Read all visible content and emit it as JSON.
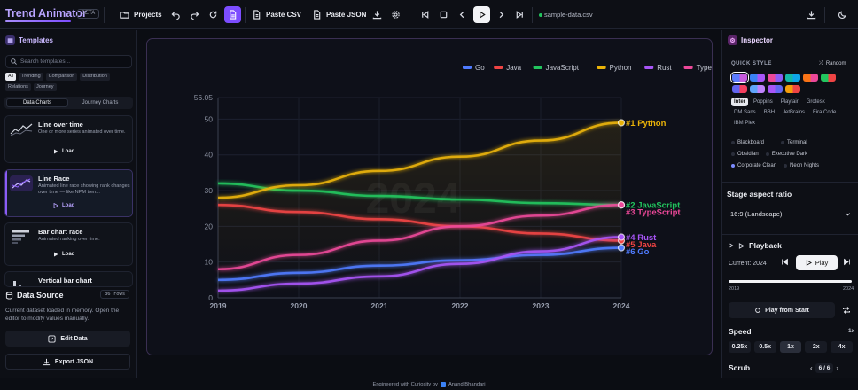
{
  "app": {
    "title": "Trend Animator",
    "badge": "BETA"
  },
  "toolbar": {
    "projects_label": "Projects",
    "paste_csv_label": "Paste CSV",
    "paste_json_label": "Paste JSON",
    "file_name": "sample-data.csv"
  },
  "templates": {
    "title": "Templates",
    "search_placeholder": "Search templates...",
    "filters": [
      "All",
      "Trending",
      "Comparison",
      "Distribution",
      "Relations",
      "Journey"
    ],
    "tabs": [
      "Data Charts",
      "Journey Charts"
    ],
    "load_label": "Load",
    "cards": [
      {
        "title": "Line over time",
        "desc": "One or more series animated over time."
      },
      {
        "title": "Line Race",
        "desc": "Animated line race showing rank changes over time — like NPM tren..."
      },
      {
        "title": "Bar chart race",
        "desc": "Animated ranking over time."
      },
      {
        "title": "Vertical bar chart",
        "desc": ""
      }
    ]
  },
  "data_source": {
    "title": "Data Source",
    "rows_badge": "36 rows",
    "desc": "Current dataset loaded in memory. Open the editor to modify values manually.",
    "edit_label": "Edit Data",
    "export_label": "Export JSON"
  },
  "inspector": {
    "title": "Inspector",
    "quick_style": "QUICK STYLE",
    "random_label": "Random",
    "swatches": [
      [
        "#5b7cff",
        "#c65bdc"
      ],
      [
        "#3b82f6",
        "#a855f7"
      ],
      [
        "#ec4899",
        "#8b5cf6"
      ],
      [
        "#14b8a6",
        "#0ea5e9"
      ],
      [
        "#f97316",
        "#ec4899"
      ],
      [
        "#22c55e",
        "#ef4444"
      ],
      [
        "#6366f1",
        "#f43f5e"
      ],
      [
        "#60a5fa",
        "#c084fc"
      ],
      [
        "#a855f7",
        "#6366f1"
      ],
      [
        "#f59e0b",
        "#ef4444"
      ]
    ],
    "fonts": [
      "Inter",
      "Poppins",
      "Playfair",
      "Grotesk",
      "DM Sans",
      "BBH",
      "JetBrains",
      "Fira Code",
      "IBM Plex"
    ],
    "themes": [
      "Blackboard",
      "Terminal",
      "Obsidian",
      "Executive Dark",
      "Corporate Clean",
      "Neon Nights"
    ],
    "aspect_title": "Stage aspect ratio",
    "aspect_value": "16:9 (Landscape)",
    "playback_title": "Playback",
    "current_label": "Current: 2024",
    "play_label": "Play",
    "progress": 1.0,
    "range_start": "2019",
    "range_end": "2024",
    "play_from_start_label": "Play from Start",
    "speed_title": "Speed",
    "speed_value": "1x",
    "speeds": [
      "0.25x",
      "0.5x",
      "1x",
      "2x",
      "4x"
    ],
    "scrub_title": "Scrub",
    "scrub_value": "6 / 6"
  },
  "footer": {
    "text": "Engineered with Curiosity by",
    "author": "Anand Bhandari"
  },
  "chart_data": {
    "type": "line",
    "x": [
      2019,
      2020,
      2021,
      2022,
      2023,
      2024
    ],
    "xlim": [
      2019,
      2024
    ],
    "ylim": [
      0,
      56.05
    ],
    "y_ticks": [
      0,
      10,
      20,
      30,
      40,
      50,
      56.05
    ],
    "watermark": "2024",
    "grid": true,
    "legend_position": "top-right",
    "series": [
      {
        "name": "Go",
        "color": "#4f7bff",
        "values": [
          5,
          7,
          9,
          10.5,
          12,
          14
        ]
      },
      {
        "name": "Java",
        "color": "#ef4444",
        "values": [
          26,
          24,
          22,
          20,
          18,
          16
        ]
      },
      {
        "name": "JavaScript",
        "color": "#22c55e",
        "values": [
          32,
          30,
          28.5,
          27.5,
          26.5,
          26
        ]
      },
      {
        "name": "Python",
        "color": "#eab308",
        "values": [
          28,
          31.5,
          35.5,
          39.5,
          44,
          49
        ]
      },
      {
        "name": "Rust",
        "color": "#a855f7",
        "values": [
          2,
          4,
          6,
          9.5,
          13,
          17
        ]
      },
      {
        "name": "TypeScript",
        "color": "#ec4899",
        "values": [
          8,
          12,
          16,
          20,
          23,
          26
        ]
      }
    ],
    "end_labels": [
      {
        "series": "Python",
        "text": "#1 Python"
      },
      {
        "series": "JavaScript",
        "text": "#2 JavaScript"
      },
      {
        "series": "TypeScript",
        "text": "#3 TypeScript"
      },
      {
        "series": "Rust",
        "text": "#4 Rust"
      },
      {
        "series": "Java",
        "text": "#5 Java"
      },
      {
        "series": "Go",
        "text": "#6 Go"
      }
    ]
  }
}
